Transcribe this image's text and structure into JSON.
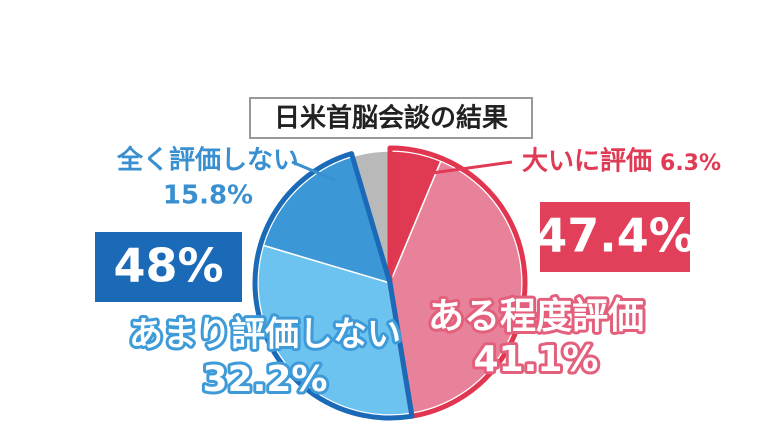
{
  "chart_data": {
    "type": "pie",
    "title": "日米首脳会談の結果",
    "categories": [
      "大いに評価",
      "ある程度評価",
      "あまり評価しない",
      "全く評価しない",
      null
    ],
    "values": [
      6.3,
      41.1,
      32.2,
      15.8,
      4.6
    ],
    "value_labels": [
      "6.3%",
      "41.1%",
      "32.2%",
      "15.8%",
      null
    ],
    "colors": [
      "#e03a52",
      "#e8829a",
      "#6cc3f0",
      "#3c97d6",
      "#b9b9b9"
    ],
    "group_totals": [
      {
        "value": 47.4,
        "label": "47.4%",
        "color": "#e0364f"
      },
      {
        "value": 48,
        "label": "48%",
        "color": "#1a6ab8"
      }
    ]
  }
}
